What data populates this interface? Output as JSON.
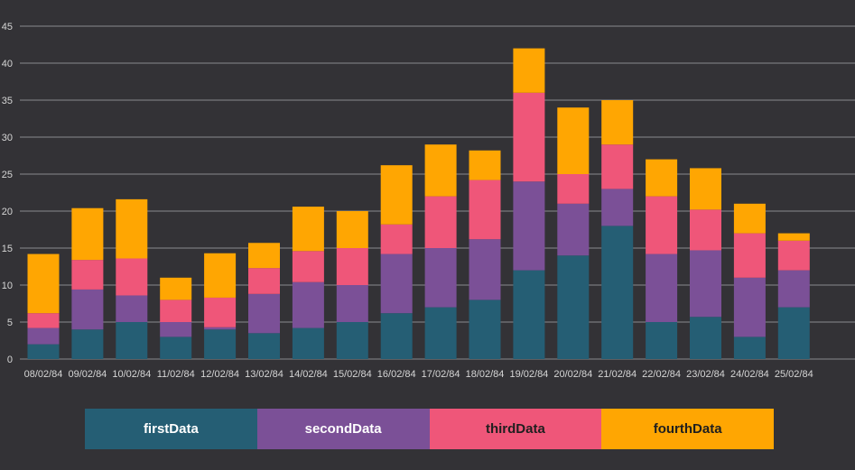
{
  "colors": {
    "background": "#333236",
    "grid": "#8a8a8d",
    "axis_text": "#d6d6d6"
  },
  "chart_data": {
    "type": "bar",
    "stacked": true,
    "categories": [
      "08/02/84",
      "09/02/84",
      "10/02/84",
      "11/02/84",
      "12/02/84",
      "13/02/84",
      "14/02/84",
      "15/02/84",
      "16/02/84",
      "17/02/84",
      "18/02/84",
      "19/02/84",
      "20/02/84",
      "21/02/84",
      "22/02/84",
      "23/02/84",
      "24/02/84",
      "25/02/84"
    ],
    "series": [
      {
        "name": "firstData",
        "color": "#255e74",
        "text_color": "#ffffff",
        "values": [
          2,
          4,
          5,
          3,
          4,
          3.5,
          4.2,
          5,
          6.2,
          7,
          8,
          12,
          14,
          18,
          5,
          5.7,
          3,
          7
        ]
      },
      {
        "name": "secondData",
        "color": "#7b5097",
        "text_color": "#ffffff",
        "values": [
          2.2,
          5.4,
          3.6,
          2,
          0.3,
          5.3,
          6.2,
          5,
          8,
          8,
          8.2,
          12,
          7,
          5,
          9.2,
          9,
          8,
          5
        ]
      },
      {
        "name": "thirdData",
        "color": "#ef5679",
        "text_color": "#1f1f1f",
        "values": [
          2,
          4,
          5,
          3,
          4,
          3.5,
          4.2,
          5,
          4,
          7,
          8,
          12,
          4,
          6,
          7.8,
          5.5,
          6,
          4
        ]
      },
      {
        "name": "fourthData",
        "color": "#ffa602",
        "text_color": "#1f1f1f",
        "values": [
          8,
          7,
          8,
          3,
          6,
          3.4,
          6,
          5,
          8,
          7,
          4,
          6,
          9,
          6,
          5,
          5.6,
          4,
          1
        ]
      }
    ],
    "ylim": [
      0,
      45
    ],
    "yticks": [
      0,
      5,
      10,
      15,
      20,
      25,
      30,
      35,
      40,
      45
    ],
    "grid": true,
    "legend_position": "bottom"
  }
}
